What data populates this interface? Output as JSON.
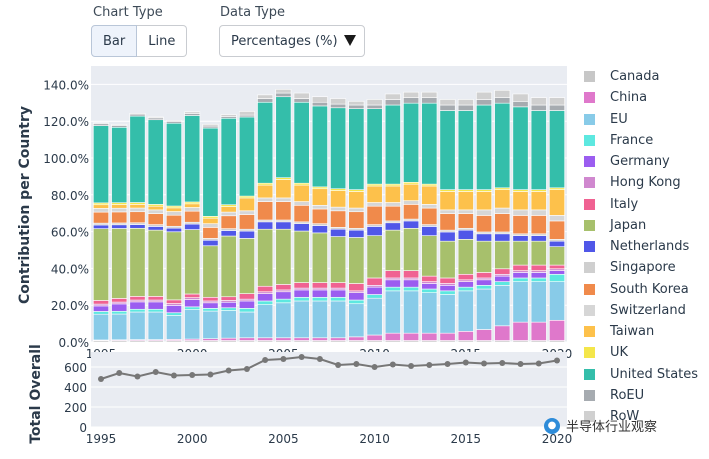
{
  "controls": {
    "chart_type_label": "Chart Type",
    "bar_label": "Bar",
    "line_label": "Line",
    "data_type_label": "Data Type",
    "data_type_value": "Percentages (%)"
  },
  "watermark": "半导体行业观察",
  "chart_data": [
    {
      "type": "bar",
      "stacked": true,
      "ylabel": "Contribution per Country",
      "ylim": [
        0,
        150
      ],
      "yticks": [
        "0.0%",
        "20.0%",
        "40.0%",
        "60.0%",
        "80.0%",
        "100.0%",
        "120.0%",
        "140.0%"
      ],
      "ytick_values": [
        0,
        20,
        40,
        60,
        80,
        100,
        120,
        140
      ],
      "x_ticks": [
        1995,
        2000,
        2005,
        2010,
        2015,
        2020
      ],
      "categories": [
        1995,
        1996,
        1997,
        1998,
        1999,
        2000,
        2001,
        2002,
        2003,
        2004,
        2005,
        2006,
        2007,
        2008,
        2009,
        2010,
        2011,
        2012,
        2013,
        2014,
        2015,
        2016,
        2017,
        2018,
        2019,
        2020
      ],
      "grid": true,
      "legend_position": "right",
      "series": [
        {
          "name": "Canada",
          "color": "#c7c7c7",
          "values": [
            0.8,
            0.8,
            0.8,
            0.8,
            0.8,
            0.8,
            0.8,
            0.8,
            0.8,
            0.8,
            0.8,
            0.8,
            0.8,
            0.8,
            0.8,
            0.8,
            0.8,
            0.8,
            0.8,
            0.8,
            0.8,
            0.8,
            0.8,
            0.8,
            0.8,
            0.8
          ]
        },
        {
          "name": "China",
          "color": "#df78cb",
          "values": [
            0.3,
            0.4,
            0.5,
            0.5,
            0.6,
            0.8,
            1,
            1.3,
            1.5,
            1.5,
            1.5,
            1.5,
            1.5,
            1.5,
            2,
            3,
            4,
            4,
            4,
            4,
            5,
            6,
            8,
            10,
            10,
            11
          ]
        },
        {
          "name": "EU",
          "color": "#88cbe8",
          "values": [
            14,
            14,
            15,
            15,
            13,
            16,
            15,
            15,
            14,
            18,
            19,
            20,
            20,
            20,
            18,
            20,
            23,
            23,
            22,
            21,
            22,
            22,
            22,
            22,
            22,
            21
          ]
        },
        {
          "name": "France",
          "color": "#5de8e0",
          "values": [
            1.5,
            1.5,
            1.5,
            1.5,
            1.5,
            1.5,
            1.5,
            1.5,
            2,
            2,
            2,
            2,
            2,
            2,
            2,
            2,
            2,
            2,
            2,
            2,
            2,
            2,
            2,
            2,
            2,
            4
          ]
        },
        {
          "name": "Germany",
          "color": "#9b5df0",
          "values": [
            3,
            4,
            4,
            4,
            4,
            4,
            3,
            3,
            4,
            4,
            4,
            4,
            4,
            4,
            4,
            4,
            4,
            4,
            3,
            3,
            3,
            3,
            3,
            3,
            3,
            2
          ]
        },
        {
          "name": "Hong Kong",
          "color": "#d088cf",
          "values": [
            1,
            1,
            1,
            1,
            1,
            1,
            1,
            1,
            1,
            1,
            1,
            1,
            1,
            1,
            1,
            1,
            1,
            1,
            1,
            1,
            1,
            1,
            1,
            1,
            1,
            1
          ]
        },
        {
          "name": "Italy",
          "color": "#f06292",
          "values": [
            2,
            2,
            2,
            2,
            2,
            2,
            2,
            2,
            3,
            3,
            3,
            3,
            3,
            3,
            4,
            4,
            4,
            4,
            3,
            3,
            3,
            3,
            3,
            3,
            3,
            2
          ]
        },
        {
          "name": "Japan",
          "color": "#a7c06c",
          "values": [
            39,
            38,
            37,
            36,
            37,
            35,
            28,
            33,
            30,
            31,
            30,
            28,
            27,
            25,
            25,
            23,
            22,
            23,
            22,
            20,
            19,
            17,
            15,
            13,
            13,
            10
          ]
        },
        {
          "name": "Netherlands",
          "color": "#5057e8",
          "values": [
            2,
            2,
            2,
            2,
            2,
            3,
            3,
            3,
            4,
            4,
            4,
            4,
            4,
            4,
            4,
            5,
            4,
            4,
            5,
            5,
            5,
            4,
            4,
            3,
            3,
            3
          ]
        },
        {
          "name": "Singapore",
          "color": "#cfcfcf",
          "values": [
            1,
            1,
            1,
            1,
            1,
            1,
            1,
            1,
            1,
            1,
            1,
            1,
            1,
            1,
            1,
            1,
            1,
            1,
            1,
            1,
            1,
            1,
            1,
            1,
            1,
            1
          ]
        },
        {
          "name": "South Korea",
          "color": "#f08a4b",
          "values": [
            6,
            6,
            6,
            6,
            6,
            6,
            6,
            7,
            8,
            10,
            10,
            9,
            8,
            9,
            9,
            10,
            8,
            8,
            9,
            9,
            8,
            9,
            10,
            10,
            10,
            10
          ]
        },
        {
          "name": "Switzerland",
          "color": "#d6d6d6",
          "values": [
            2,
            2,
            2,
            2,
            2,
            2,
            2,
            2,
            2,
            2,
            2,
            2,
            2,
            2,
            2,
            2,
            2,
            2,
            2,
            2,
            2,
            3,
            3,
            3,
            3,
            3
          ]
        },
        {
          "name": "Taiwan",
          "color": "#fdc14b",
          "values": [
            2,
            2,
            2,
            2,
            2,
            2,
            3,
            3,
            7,
            7,
            10,
            9,
            9,
            9,
            9,
            9,
            9,
            9,
            10,
            10,
            10,
            10,
            10,
            10,
            10,
            14
          ]
        },
        {
          "name": "UK",
          "color": "#f4e64a",
          "values": [
            1,
            1,
            1,
            1,
            1,
            1,
            1,
            1,
            1,
            1,
            1,
            1,
            1,
            1,
            1,
            1,
            1,
            1,
            1,
            1,
            1,
            1,
            1,
            1,
            1,
            1
          ]
        },
        {
          "name": "United States",
          "color": "#34beaa",
          "values": [
            42,
            41,
            47,
            46,
            45,
            47,
            48,
            47,
            43,
            44,
            44,
            44,
            44,
            44,
            44,
            41,
            43,
            43,
            44,
            43,
            43,
            46,
            46,
            45,
            43,
            42
          ]
        },
        {
          "name": "RoEU",
          "color": "#a6abb0",
          "values": [
            1,
            1,
            1,
            1,
            1,
            1,
            1,
            1,
            1,
            2,
            2,
            2,
            2,
            2,
            2,
            2,
            3,
            3,
            3,
            3,
            3,
            3,
            3,
            3,
            3,
            3
          ]
        },
        {
          "name": "RoW",
          "color": "#d0d0d0",
          "values": [
            0.5,
            0.5,
            0.5,
            0.5,
            0.5,
            1,
            1,
            1,
            2,
            2,
            2,
            3,
            3,
            3,
            2,
            3,
            3,
            3,
            3,
            3,
            3,
            4,
            4,
            4,
            4,
            4
          ]
        }
      ]
    },
    {
      "type": "line",
      "ylabel": "Total Overall",
      "ylim": [
        0,
        750
      ],
      "yticks": [
        "0",
        "200",
        "400",
        "600"
      ],
      "ytick_values": [
        0,
        200,
        400,
        600
      ],
      "x_ticks": [
        1995,
        2000,
        2005,
        2010,
        2015,
        2020
      ],
      "x_tick_labels": [
        "1995",
        "2000",
        "2005",
        "2010",
        "2015",
        "2020"
      ],
      "x": [
        1995,
        1996,
        1997,
        1998,
        1999,
        2000,
        2001,
        2002,
        2003,
        2004,
        2005,
        2006,
        2007,
        2008,
        2009,
        2010,
        2011,
        2012,
        2013,
        2014,
        2015,
        2016,
        2017,
        2018,
        2019,
        2020
      ],
      "values": [
        480,
        540,
        505,
        550,
        515,
        520,
        525,
        565,
        580,
        670,
        680,
        700,
        680,
        620,
        630,
        600,
        625,
        610,
        620,
        630,
        645,
        635,
        640,
        630,
        635,
        665
      ],
      "color": "#777777"
    }
  ]
}
